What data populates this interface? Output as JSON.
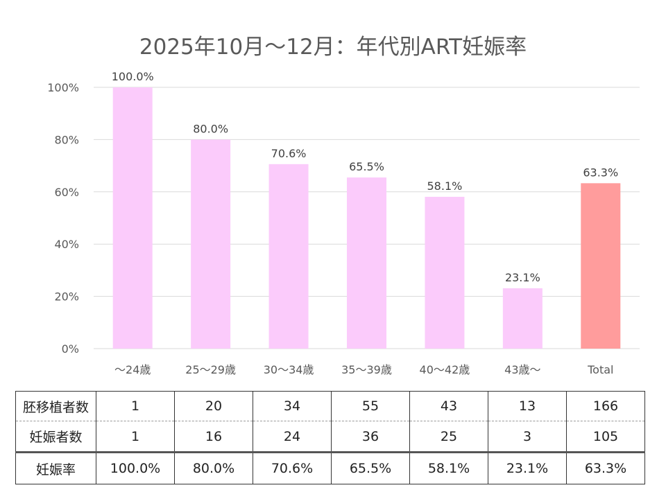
{
  "chart_data": {
    "type": "bar",
    "title": "2025年10月～12月：年代別ART妊娠率",
    "categories": [
      "～24歳",
      "25～29歳",
      "30～34歳",
      "35～39歳",
      "40～42歳",
      "43歳～",
      "Total"
    ],
    "values": [
      100.0,
      80.0,
      70.6,
      65.5,
      58.1,
      23.1,
      63.3
    ],
    "data_labels": [
      "100.0%",
      "80.0%",
      "70.6%",
      "65.5%",
      "58.1%",
      "23.1%",
      "63.3%"
    ],
    "ylim": [
      0,
      100
    ],
    "yticks": [
      "0%",
      "20%",
      "40%",
      "60%",
      "80%",
      "100%"
    ],
    "grid": true,
    "colors": {
      "bar": "#FBCBFB",
      "total_bar": "#FF9C9C",
      "grid": "#D9D9D9"
    }
  },
  "table": {
    "rows": [
      {
        "label": "胚移植者数",
        "cells": [
          "1",
          "20",
          "34",
          "55",
          "43",
          "13",
          "166"
        ]
      },
      {
        "label": "妊娠者数",
        "cells": [
          "1",
          "16",
          "24",
          "36",
          "25",
          "3",
          "105"
        ]
      },
      {
        "label": "妊娠率",
        "cells": [
          "100.0%",
          "80.0%",
          "70.6%",
          "65.5%",
          "58.1%",
          "23.1%",
          "63.3%"
        ]
      }
    ]
  }
}
